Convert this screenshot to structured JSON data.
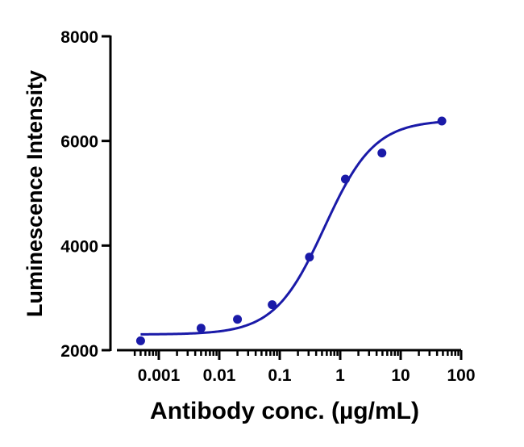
{
  "chart_data": {
    "type": "scatter",
    "title": "",
    "xlabel": "Antibody conc. (µg/mL)",
    "ylabel": "Luminescence Intensity",
    "x_scale": "log",
    "xlim": [
      0.0004,
      100
    ],
    "ylim": [
      2000,
      8000
    ],
    "x_ticks": [
      0.001,
      0.01,
      0.1,
      1,
      10,
      100
    ],
    "x_tick_labels": [
      "0.001",
      "0.01",
      "0.1",
      "1",
      "10",
      "100"
    ],
    "y_ticks": [
      2000,
      4000,
      6000,
      8000
    ],
    "y_tick_labels": [
      "2000",
      "4000",
      "6000",
      "8000"
    ],
    "grid": false,
    "legend": "none",
    "colors": {
      "series": "#1a1aa8",
      "axis": "#000000"
    },
    "series": [
      {
        "x": [
          0.0005,
          0.005,
          0.02,
          0.075,
          0.31,
          1.22,
          4.9,
          48
        ],
        "y": [
          2180,
          2420,
          2590,
          2870,
          3780,
          5270,
          5770,
          6380
        ],
        "fit": {
          "model": "4PL",
          "bottom": 2300,
          "top": 6400,
          "ec50": 0.55,
          "hill": 1.05
        }
      }
    ]
  }
}
